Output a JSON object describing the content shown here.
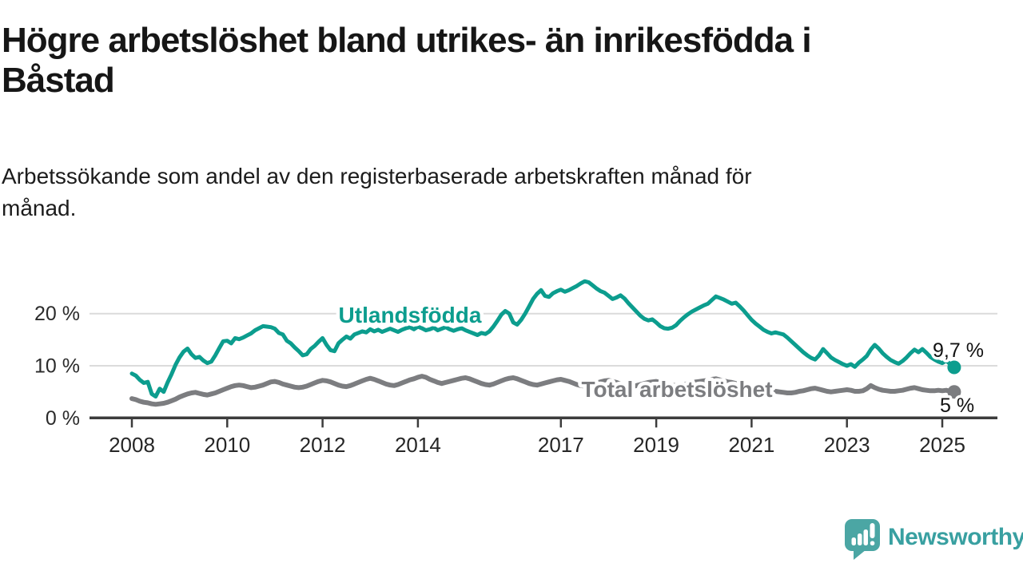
{
  "header": {
    "title": "Högre arbetslöshet bland utrikes- än inrikesfödda i Båstad",
    "title_lines": [
      "Högre arbetslöshet bland utrikes- än inrikesfödda i",
      "Båstad"
    ],
    "subtitle": "Arbetssökande som andel av den registerbaserade arbetskraften månad för månad.",
    "subtitle_lines": [
      "Arbetssökande som andel av den registerbaserade arbetskraften månad för",
      "månad."
    ]
  },
  "chart_data": {
    "type": "line",
    "unit": "%",
    "frequency": "monthly",
    "start": "2008-01",
    "end": "2025-04",
    "grid": "horizontal",
    "x_axis": {
      "ticks": [
        2008,
        2010,
        2012,
        2014,
        2017,
        2019,
        2021,
        2023,
        2025
      ]
    },
    "y_axis": {
      "ticks": [
        {
          "value": 0,
          "label": "0 %"
        },
        {
          "value": 10,
          "label": "10 %"
        },
        {
          "value": 20,
          "label": "20 %"
        }
      ],
      "range": [
        0,
        28
      ]
    },
    "series": [
      {
        "id": "utlandsfodda",
        "label": "Utlandsfödda",
        "color": "#0C9D8E",
        "end_label": "9,7 %",
        "last_value": 9.7,
        "values": [
          8.5,
          8.1,
          7.3,
          6.7,
          6.9,
          4.6,
          4.1,
          5.6,
          5.0,
          6.8,
          8.4,
          10.2,
          11.6,
          12.7,
          13.3,
          12.2,
          11.5,
          11.7,
          11.0,
          10.5,
          10.8,
          12.0,
          13.4,
          14.7,
          14.8,
          14.3,
          15.3,
          15.1,
          15.4,
          15.8,
          16.2,
          16.8,
          17.2,
          17.6,
          17.5,
          17.4,
          17.1,
          16.3,
          16.0,
          14.8,
          14.3,
          13.5,
          12.8,
          12.0,
          12.2,
          13.2,
          13.8,
          14.6,
          15.3,
          14.0,
          13.0,
          12.8,
          14.3,
          15.0,
          15.6,
          15.2,
          16.0,
          16.3,
          16.6,
          16.4,
          17.0,
          16.6,
          16.9,
          16.5,
          16.8,
          17.1,
          16.8,
          16.5,
          16.9,
          17.2,
          17.4,
          17.0,
          17.5,
          17.2,
          16.8,
          17.0,
          17.3,
          16.8,
          17.1,
          17.4,
          17.0,
          16.7,
          17.0,
          17.2,
          16.8,
          16.5,
          16.2,
          15.9,
          16.3,
          16.1,
          16.6,
          17.5,
          18.6,
          19.8,
          20.5,
          20.0,
          18.3,
          17.9,
          18.8,
          20.0,
          21.4,
          22.8,
          23.8,
          24.5,
          23.4,
          23.2,
          23.9,
          24.3,
          24.6,
          24.2,
          24.5,
          24.9,
          25.3,
          25.8,
          26.2,
          26.0,
          25.4,
          24.8,
          24.3,
          24.0,
          23.4,
          22.8,
          23.1,
          23.5,
          22.9,
          22.0,
          21.2,
          20.4,
          19.6,
          19.0,
          18.7,
          18.9,
          18.3,
          17.6,
          17.2,
          17.1,
          17.3,
          17.8,
          18.6,
          19.3,
          19.9,
          20.4,
          20.8,
          21.2,
          21.6,
          21.9,
          22.6,
          23.3,
          23.0,
          22.7,
          22.3,
          21.9,
          22.1,
          21.4,
          20.6,
          19.7,
          18.8,
          18.1,
          17.5,
          16.9,
          16.5,
          16.2,
          16.4,
          16.2,
          16.0,
          15.4,
          14.7,
          14.0,
          13.3,
          12.6,
          12.0,
          11.5,
          11.2,
          12.0,
          13.2,
          12.4,
          11.6,
          11.1,
          10.7,
          10.3,
          10.0,
          10.3,
          9.8,
          10.6,
          11.2,
          11.9,
          13.1,
          14.0,
          13.3,
          12.4,
          11.7,
          11.1,
          10.7,
          10.4,
          10.9,
          11.6,
          12.4,
          13.1,
          12.6,
          13.2,
          12.5,
          11.7,
          11.2,
          10.8,
          10.5,
          11.0,
          10.3,
          9.7
        ]
      },
      {
        "id": "total",
        "label": "Total arbetslöshet",
        "color": "#7C7D80",
        "end_label": "5 %",
        "last_value": 5.0,
        "values": [
          3.7,
          3.5,
          3.2,
          3.0,
          2.9,
          2.7,
          2.6,
          2.7,
          2.8,
          3.0,
          3.3,
          3.6,
          4.0,
          4.3,
          4.6,
          4.8,
          4.9,
          4.7,
          4.5,
          4.4,
          4.6,
          4.8,
          5.1,
          5.4,
          5.7,
          6.0,
          6.2,
          6.3,
          6.2,
          6.0,
          5.8,
          5.9,
          6.1,
          6.3,
          6.6,
          6.9,
          7.0,
          6.8,
          6.5,
          6.3,
          6.1,
          5.9,
          5.8,
          5.9,
          6.1,
          6.4,
          6.7,
          7.0,
          7.2,
          7.1,
          6.9,
          6.6,
          6.3,
          6.1,
          6.0,
          6.2,
          6.5,
          6.8,
          7.1,
          7.4,
          7.6,
          7.4,
          7.1,
          6.8,
          6.5,
          6.3,
          6.2,
          6.4,
          6.7,
          7.0,
          7.3,
          7.5,
          7.8,
          8.0,
          7.8,
          7.4,
          7.1,
          6.8,
          6.6,
          6.8,
          7.0,
          7.2,
          7.4,
          7.6,
          7.7,
          7.5,
          7.2,
          6.9,
          6.6,
          6.4,
          6.3,
          6.5,
          6.8,
          7.1,
          7.4,
          7.6,
          7.7,
          7.5,
          7.2,
          6.9,
          6.6,
          6.4,
          6.3,
          6.5,
          6.7,
          6.9,
          7.1,
          7.3,
          7.4,
          7.2,
          7.0,
          6.7,
          6.4,
          6.2,
          6.1,
          6.3,
          6.5,
          6.7,
          6.9,
          7.1,
          7.2,
          7.0,
          6.8,
          6.5,
          6.3,
          6.1,
          6.0,
          6.2,
          6.4,
          6.6,
          6.8,
          6.9,
          7.0,
          6.8,
          6.6,
          6.4,
          6.3,
          6.2,
          6.3,
          6.4,
          6.6,
          6.7,
          6.9,
          7.0,
          7.1,
          7.2,
          7.4,
          7.5,
          7.3,
          7.1,
          6.9,
          6.8,
          6.6,
          6.4,
          6.2,
          6.1,
          6.0,
          5.8,
          5.7,
          5.5,
          5.4,
          5.2,
          5.1,
          5.0,
          4.9,
          4.8,
          4.8,
          4.9,
          5.1,
          5.2,
          5.4,
          5.6,
          5.7,
          5.5,
          5.3,
          5.1,
          5.0,
          5.1,
          5.2,
          5.3,
          5.4,
          5.3,
          5.1,
          5.1,
          5.2,
          5.6,
          6.2,
          5.8,
          5.5,
          5.3,
          5.2,
          5.1,
          5.1,
          5.2,
          5.3,
          5.5,
          5.7,
          5.8,
          5.6,
          5.4,
          5.3,
          5.2,
          5.2,
          5.3,
          5.2,
          5.3,
          5.1,
          5.0
        ]
      }
    ]
  },
  "branding": {
    "name": "Newsworthy",
    "icon_color": "#4BA6A4",
    "text_color": "#39A0A1"
  }
}
